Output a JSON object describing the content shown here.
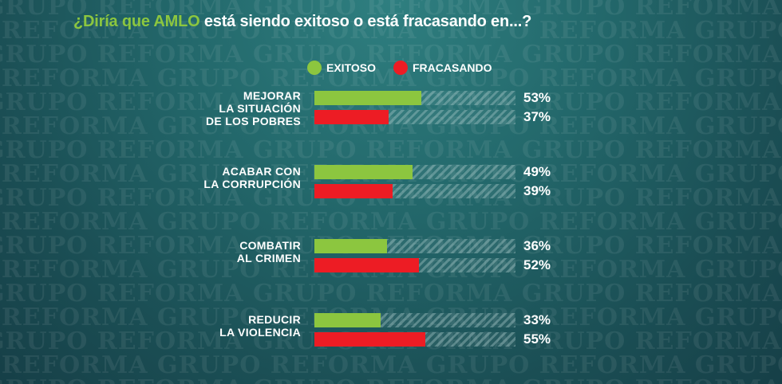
{
  "watermark": "GRUPO REFORMA",
  "title": {
    "accent": "¿Diría que AMLO",
    "rest": " está siendo exitoso o está fracasando en...?"
  },
  "colors": {
    "exitoso": "#8cc63f",
    "fracasando": "#ed1c24"
  },
  "chart_data": {
    "type": "bar",
    "title": "¿Diría que AMLO está siendo exitoso o está fracasando en...?",
    "categories": [
      [
        "MEJORAR",
        "LA SITUACIÓN",
        "DE LOS POBRES"
      ],
      [
        "ACABAR CON",
        "LA CORRUPCIÓN"
      ],
      [
        "COMBATIR",
        "AL CRIMEN"
      ],
      [
        "REDUCIR",
        "LA VIOLENCIA"
      ]
    ],
    "series": [
      {
        "name": "EXITOSO",
        "values": [
          53,
          49,
          36,
          33
        ],
        "labels": [
          "53%",
          "49%",
          "36%",
          "33%"
        ]
      },
      {
        "name": "FRACASANDO",
        "values": [
          37,
          39,
          52,
          55
        ],
        "labels": [
          "37%",
          "39%",
          "52%",
          "55%"
        ]
      }
    ],
    "ylim": [
      0,
      100
    ],
    "legend": "top"
  }
}
